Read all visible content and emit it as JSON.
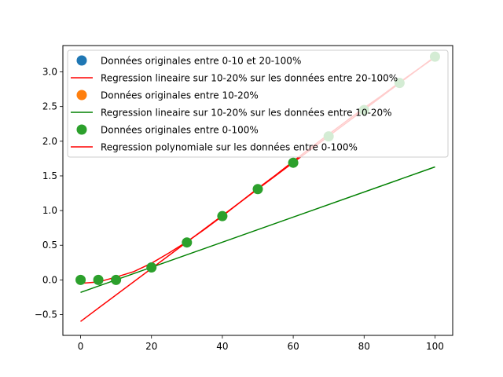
{
  "chart_data": {
    "type": "scatter",
    "title": "",
    "xlabel": "",
    "ylabel": "",
    "xlim": [
      -5,
      105
    ],
    "ylim": [
      -0.8,
      3.38
    ],
    "xticks": [
      0,
      20,
      40,
      60,
      80,
      100
    ],
    "yticks": [
      -0.5,
      0.0,
      0.5,
      1.0,
      1.5,
      2.0,
      2.5,
      3.0
    ],
    "xtick_labels": [
      "0",
      "20",
      "40",
      "60",
      "80",
      "100"
    ],
    "ytick_labels": [
      "−0.5",
      "0.0",
      "0.5",
      "1.0",
      "1.5",
      "2.0",
      "2.5",
      "3.0"
    ],
    "grid": false,
    "legend_position": "top-left",
    "series": [
      {
        "name": "Données originales entre 0-10 et 20-100%",
        "kind": "scatter",
        "color": "#1f77b4",
        "x": [],
        "y": []
      },
      {
        "name": "Regression lineaire sur 10-20% sur les données entre 20-100%",
        "kind": "line",
        "color": "#ff0000",
        "x": [
          0,
          100
        ],
        "y": [
          -0.6,
          3.22
        ]
      },
      {
        "name": "Données originales entre 10-20%",
        "kind": "scatter",
        "color": "#ff7f0e",
        "x": [],
        "y": []
      },
      {
        "name": "Regression lineaire sur 10-20% sur les données entre 10-20%",
        "kind": "line",
        "color": "#008000",
        "x": [
          0,
          100
        ],
        "y": [
          -0.18,
          1.63
        ]
      },
      {
        "name": "Données originales entre 0-100%",
        "kind": "scatter",
        "color": "#2ca02c",
        "x": [
          0,
          5,
          10,
          20,
          30,
          40,
          50,
          60,
          70,
          80,
          90,
          100
        ],
        "y": [
          0.0,
          0.0,
          0.0,
          0.18,
          0.54,
          0.92,
          1.31,
          1.69,
          2.07,
          2.45,
          2.84,
          3.22
        ]
      },
      {
        "name": "Regression polynomiale sur les données entre 0-100%",
        "kind": "line",
        "color": "#ff0000",
        "x": [
          0,
          5,
          10,
          15,
          20,
          25,
          30,
          35,
          40,
          45,
          50,
          55,
          60,
          65,
          70,
          75,
          80,
          85,
          90,
          95,
          100
        ],
        "y": [
          -0.05,
          -0.03,
          0.04,
          0.12,
          0.24,
          0.39,
          0.55,
          0.73,
          0.92,
          1.12,
          1.32,
          1.51,
          1.71,
          1.91,
          2.1,
          2.29,
          2.48,
          2.66,
          2.85,
          3.03,
          3.21
        ]
      }
    ]
  }
}
